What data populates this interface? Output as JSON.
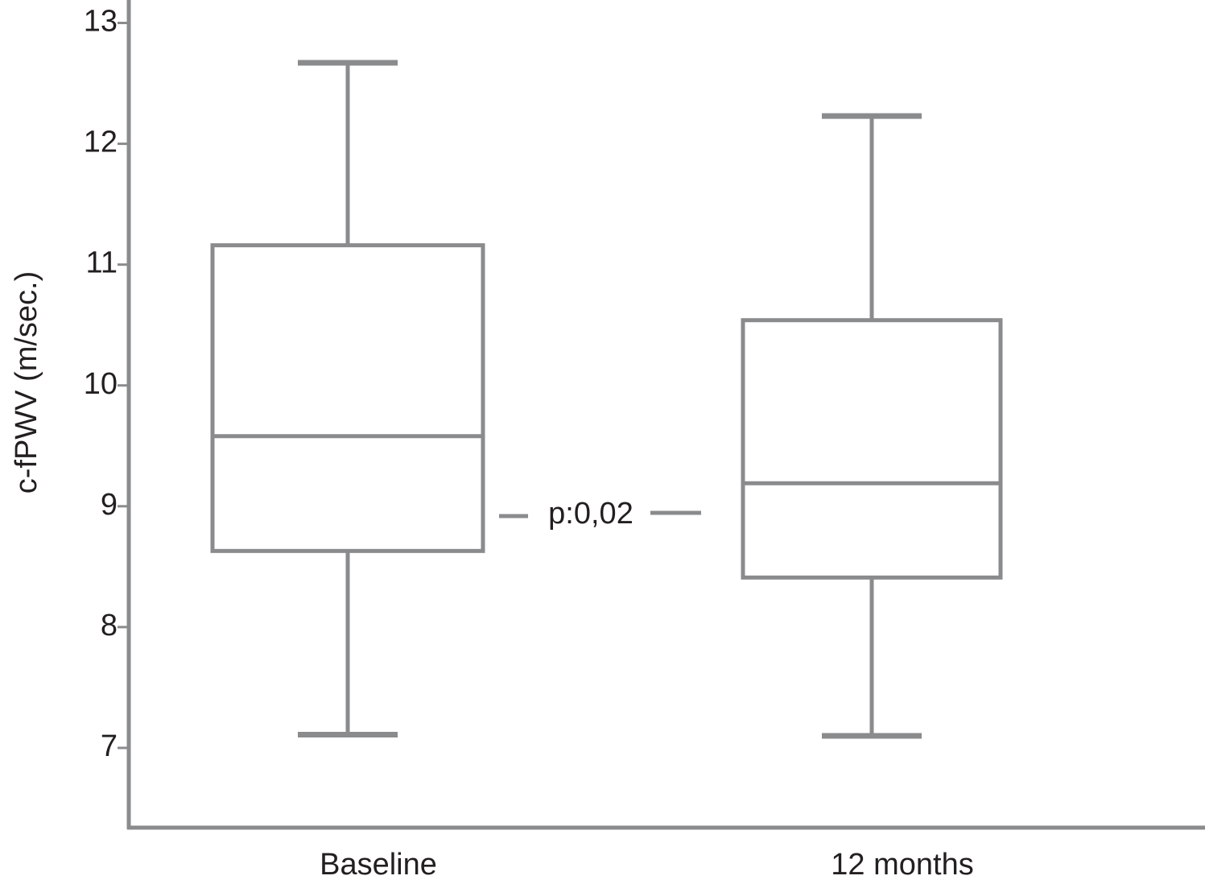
{
  "chart_data": {
    "type": "box",
    "y_label": "c-fPWV (m/sec.)",
    "categories": [
      "Baseline",
      "12 months"
    ],
    "boxes": [
      {
        "min": 7.11,
        "q1": 8.63,
        "median": 9.58,
        "q3": 11.16,
        "max": 12.67
      },
      {
        "min": 7.1,
        "q1": 8.41,
        "median": 9.19,
        "q3": 10.54,
        "max": 12.23
      }
    ],
    "color": "#8a8b8d",
    "annotation": "p:0,02",
    "ylim": [
      6.34,
      13.19
    ],
    "yticks": [
      7,
      8,
      9,
      10,
      11,
      12,
      13
    ]
  }
}
